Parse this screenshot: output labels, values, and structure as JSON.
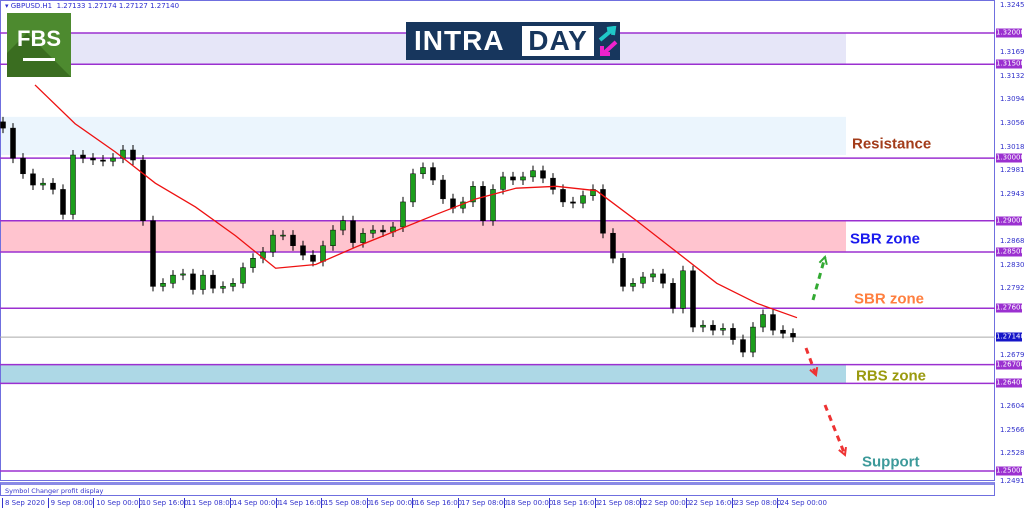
{
  "header": {
    "symbol": "GBPUSD.H1",
    "ohlc": "1.27133 1.27174 1.27127 1.27140"
  },
  "logos": {
    "broker": "FBS",
    "brand_left": "INTRA",
    "brand_right": "DAY"
  },
  "subpanel": {
    "label": "Symbol Changer profit display"
  },
  "chart_data": {
    "type": "candlestick",
    "symbol": "GBPUSD",
    "timeframe": "H1",
    "ylim": [
      1.2491,
      1.3245
    ],
    "x_tick_labels": [
      "8 Sep 2020",
      "9 Sep 08:00",
      "10 Sep 00:00",
      "10 Sep 16:00",
      "11 Sep 08:00",
      "14 Sep 00:00",
      "14 Sep 16:00",
      "15 Sep 08:00",
      "16 Sep 00:00",
      "16 Sep 16:00",
      "17 Sep 08:00",
      "18 Sep 00:00",
      "18 Sep 16:00",
      "21 Sep 08:00",
      "22 Sep 00:00",
      "22 Sep 16:00",
      "23 Sep 08:00",
      "24 Sep 00:00"
    ],
    "y_tick_labels": [
      "1.32450",
      "1.31690",
      "1.31320",
      "1.30940",
      "1.30560",
      "1.30180",
      "1.29810",
      "1.29430",
      "1.28680",
      "1.28300",
      "1.27920",
      "1.26790",
      "1.26040",
      "1.25660",
      "1.25280",
      "1.24910"
    ],
    "current_price": "1.27140",
    "closes": [
      1.3048,
      1.3,
      1.2975,
      1.2957,
      1.296,
      1.295,
      1.291,
      1.3005,
      1.3,
      1.2997,
      1.2995,
      1.3,
      1.3013,
      1.2997,
      1.29,
      1.2795,
      1.28,
      1.2813,
      1.2815,
      1.279,
      1.2813,
      1.2792,
      1.2795,
      1.28,
      1.2825,
      1.284,
      1.285,
      1.2877,
      1.2877,
      1.286,
      1.2845,
      1.2835,
      1.286,
      1.2885,
      1.29,
      1.2865,
      1.288,
      1.2885,
      1.2882,
      1.289,
      1.293,
      1.2975,
      1.2985,
      1.2965,
      1.2935,
      1.292,
      1.293,
      1.2955,
      1.29,
      1.295,
      1.297,
      1.2965,
      1.297,
      1.298,
      1.2968,
      1.295,
      1.293,
      1.2928,
      1.294,
      1.295,
      1.288,
      1.284,
      1.2795,
      1.28,
      1.281,
      1.2815,
      1.28,
      1.276,
      1.282,
      1.273,
      1.2733,
      1.2725,
      1.2728,
      1.271,
      1.269,
      1.273,
      1.275,
      1.2725,
      1.272,
      1.2714
    ],
    "moving_average": [
      1.3117,
      1.3055,
      1.301,
      1.296,
      1.2922,
      1.2876,
      1.2824,
      1.283,
      1.2858,
      1.2884,
      1.291,
      1.2935,
      1.2952,
      1.2955,
      1.2948,
      1.29,
      1.285,
      1.28,
      1.2768,
      1.2745
    ],
    "levels": [
      {
        "price": "1.32000",
        "value": 1.32
      },
      {
        "price": "1.31500",
        "value": 1.315
      },
      {
        "price": "1.30000",
        "value": 1.3
      },
      {
        "price": "1.29000",
        "value": 1.29
      },
      {
        "price": "1.28500",
        "value": 1.285
      },
      {
        "price": "1.27600",
        "value": 1.276
      },
      {
        "price": "1.26700",
        "value": 1.267
      },
      {
        "price": "1.26400",
        "value": 1.264
      },
      {
        "price": "1.25000",
        "value": 1.25
      }
    ],
    "zones": [
      {
        "from": 1.315,
        "to": 1.32,
        "color": "#e6e6f8"
      },
      {
        "from": 1.3005,
        "to": 1.3066,
        "color": "#ebf5fd"
      },
      {
        "from": 1.285,
        "to": 1.29,
        "color": "#ffc4cf"
      },
      {
        "from": 1.264,
        "to": 1.267,
        "color": "#add8e6"
      }
    ],
    "annotations": [
      {
        "text": "Resistance",
        "price": 1.3022,
        "color": "#a33c1a"
      },
      {
        "text": "SBR zone",
        "price": 1.287,
        "color": "#1a1aee"
      },
      {
        "text": "SBR zone",
        "price": 1.2775,
        "color": "#ff7f3f"
      },
      {
        "text": "RBS zone",
        "price": 1.2652,
        "color": "#9a9a10"
      },
      {
        "text": "Support",
        "price": 1.2514,
        "color": "#3d9a9a"
      }
    ],
    "colors": {
      "level": "#9b30d0",
      "ma": "#ee1111",
      "up": "#1b9e1b",
      "down": "#000000",
      "arrow_up": "#33aa33",
      "arrow_down": "#ee3333"
    }
  }
}
